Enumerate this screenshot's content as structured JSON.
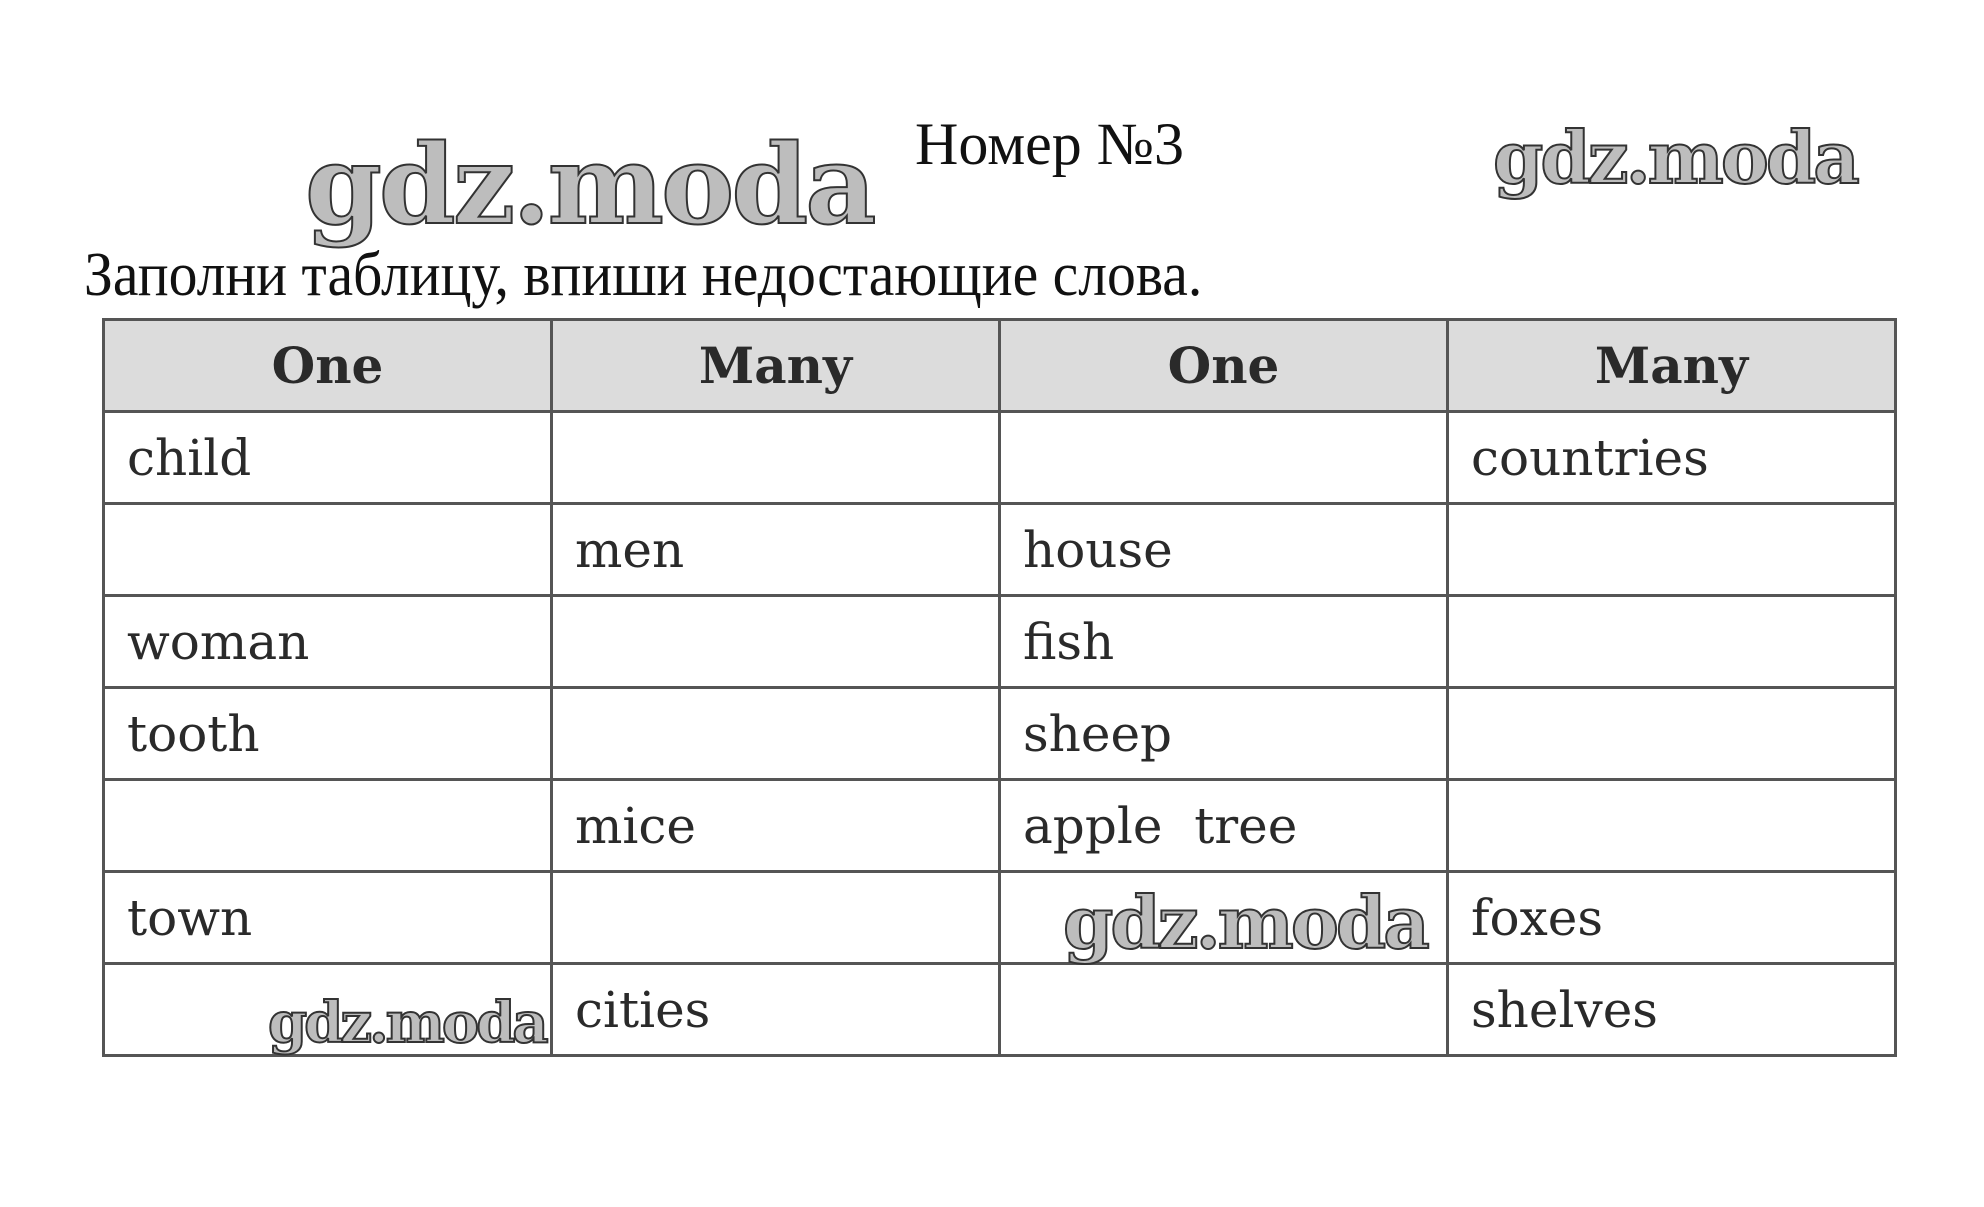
{
  "title": "Номер №3",
  "instruction": "Заполни таблицу, впиши недостающие слова.",
  "table": {
    "headers": [
      "One",
      "Many",
      "One",
      "Many"
    ],
    "rows": [
      [
        "child",
        "",
        "",
        "countries"
      ],
      [
        "",
        "men",
        "house",
        ""
      ],
      [
        "woman",
        "",
        "fish",
        ""
      ],
      [
        "tooth",
        "",
        "sheep",
        ""
      ],
      [
        "",
        "mice",
        "apple  tree",
        ""
      ],
      [
        "town",
        "",
        "",
        "foxes"
      ],
      [
        "",
        "cities",
        "",
        "shelves"
      ]
    ]
  },
  "watermark": "gdz.moda"
}
